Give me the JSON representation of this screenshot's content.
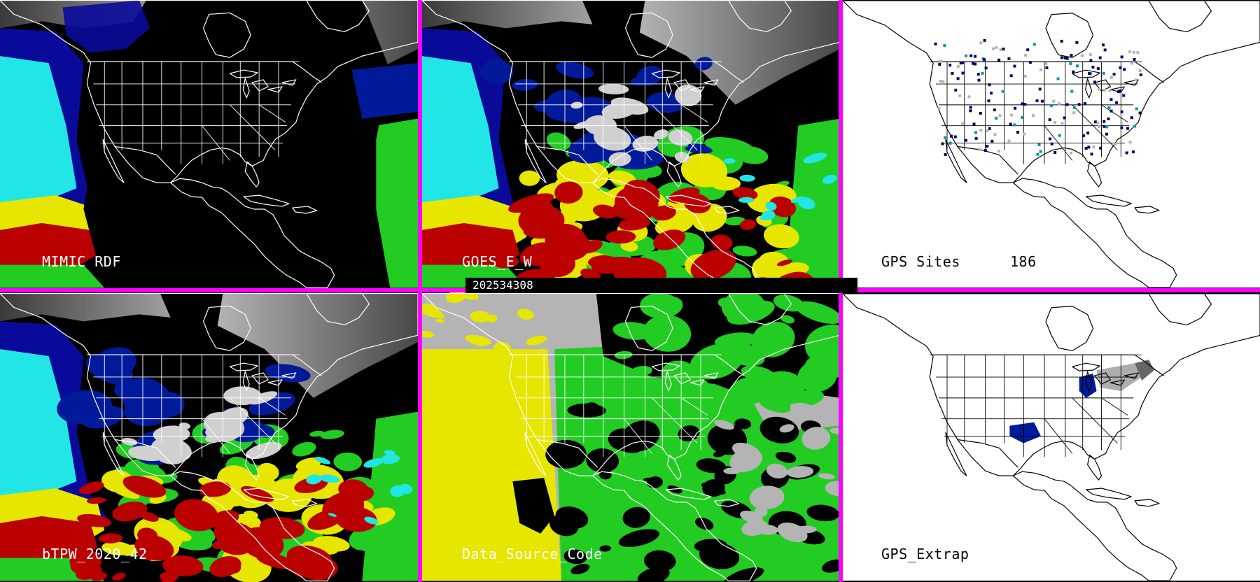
{
  "panels": [
    {
      "id": "p1",
      "label": "MIMIC RDF",
      "label_color": "#ffffff",
      "style": "mimic"
    },
    {
      "id": "p2",
      "label": "GOES_E_W",
      "label_color": "#ffffff",
      "style": "goes"
    },
    {
      "id": "p3",
      "label": "GPS Sites",
      "count": "186",
      "label_color": "#000000",
      "style": "gps_sites"
    },
    {
      "id": "p4",
      "label": "bTPW_2020_42",
      "label_color": "#ffffff",
      "style": "btpw"
    },
    {
      "id": "p5",
      "label": "Data_Source_Code",
      "label_color": "#ffffff",
      "style": "dsc"
    },
    {
      "id": "p6",
      "label": "GPS_Extrap",
      "label_color": "#000000",
      "style": "gps_extrap"
    }
  ],
  "timestamp": "202534308",
  "colors": {
    "divider": "#ff00ff",
    "ocean_cyan": "#22e6e6",
    "green": "#22cc22",
    "yellow": "#e6e600",
    "red": "#bb0000",
    "navy": "#001a99",
    "gray_high": "#b4b4b4",
    "site_navy": "#000066",
    "site_gray": "#b4b4b4",
    "site_teal": "#009999"
  }
}
